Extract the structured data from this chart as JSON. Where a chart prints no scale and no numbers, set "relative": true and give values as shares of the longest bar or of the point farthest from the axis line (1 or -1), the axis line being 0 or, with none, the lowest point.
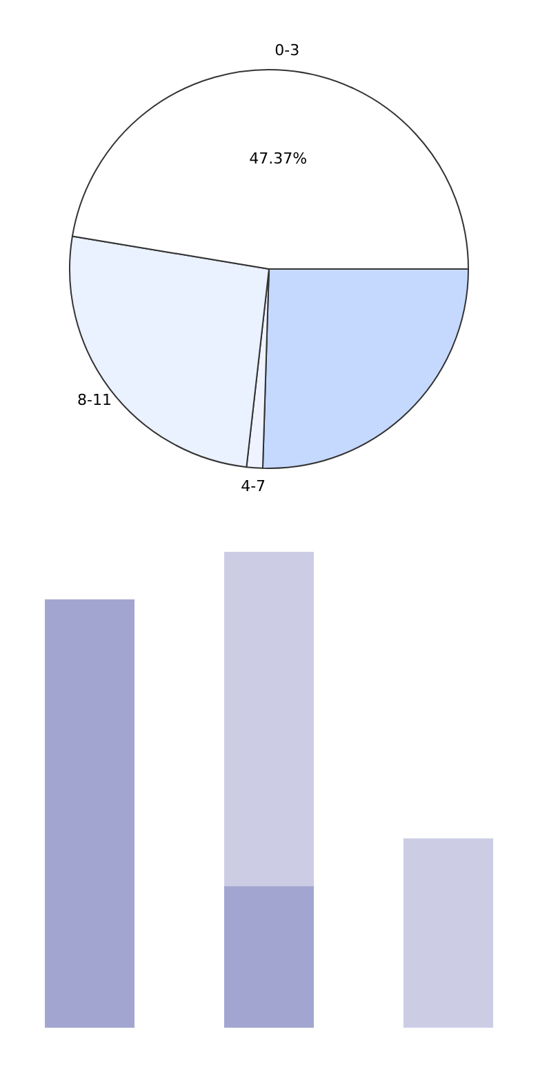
{
  "chart_data": [
    {
      "type": "pie",
      "categories": [
        null,
        "4-7",
        "8-11",
        "0-3"
      ],
      "values": [
        25.5,
        1.3,
        25.83,
        47.37
      ],
      "colors": [
        "#c5d9ff",
        "#eef3ff",
        "#eaf1ff",
        "#ffffff"
      ],
      "value_labels": [
        null,
        null,
        null,
        "47.37%"
      ],
      "legend": false
    },
    {
      "type": "bar",
      "relative": true,
      "stacked": true,
      "categories": [
        null,
        null,
        null
      ],
      "legend": false,
      "series": [
        {
          "color": "#a3a5d1",
          "values": [
            0.9,
            0.298,
            null
          ]
        },
        {
          "color": "#cccde5",
          "values": [
            null,
            0.702,
            0.398
          ]
        }
      ]
    }
  ]
}
